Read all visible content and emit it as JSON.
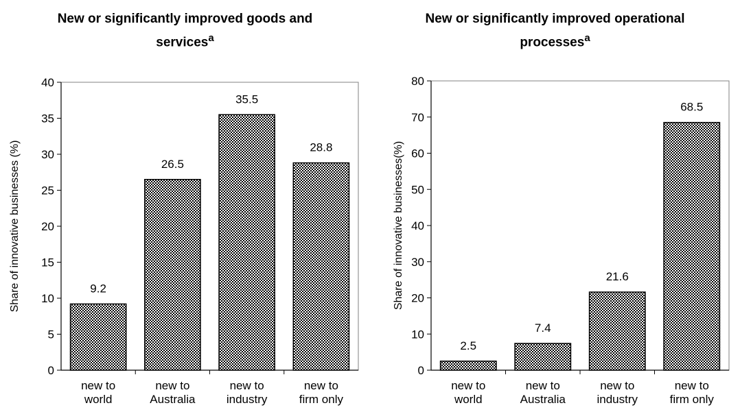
{
  "chart_data": [
    {
      "type": "bar",
      "title": "New or significantly improved goods and services",
      "title_line1": "New or significantly improved goods and",
      "title_line2": "services",
      "title_superscript": "a",
      "ylabel": "Share of innovative businesses (%)",
      "xlabel": "",
      "categories": [
        [
          "new to",
          "world"
        ],
        [
          "new to",
          "Australia"
        ],
        [
          "new to",
          "industry"
        ],
        [
          "new to",
          "firm only"
        ]
      ],
      "values": [
        9.2,
        26.5,
        35.5,
        28.8
      ],
      "value_labels": [
        "9.2",
        "26.5",
        "35.5",
        "28.8"
      ],
      "ylim": [
        0,
        40
      ],
      "yticks": [
        0,
        5,
        10,
        15,
        20,
        25,
        30,
        35,
        40
      ],
      "bar_fill": "checkered",
      "grid": false,
      "legend": "none"
    },
    {
      "type": "bar",
      "title": "New or significantly improved operational processes",
      "title_line1": "New or significantly improved operational",
      "title_line2": "processes",
      "title_superscript": "a",
      "ylabel": "Share of innovative businesses(%)",
      "xlabel": "",
      "categories": [
        [
          "new to",
          "world"
        ],
        [
          "new to",
          "Australia"
        ],
        [
          "new to",
          "industry"
        ],
        [
          "new to",
          "firm only"
        ]
      ],
      "values": [
        2.5,
        7.4,
        21.6,
        68.5
      ],
      "value_labels": [
        "2.5",
        "7.4",
        "21.6",
        "68.5"
      ],
      "ylim": [
        0,
        80
      ],
      "yticks": [
        0,
        10,
        20,
        30,
        40,
        50,
        60,
        70,
        80
      ],
      "bar_fill": "checkered",
      "grid": false,
      "legend": "none"
    }
  ],
  "colors": {
    "bar_dark": "#000000",
    "bar_light": "#ffffff",
    "axis": "#000000",
    "plot_border": "#808080"
  }
}
